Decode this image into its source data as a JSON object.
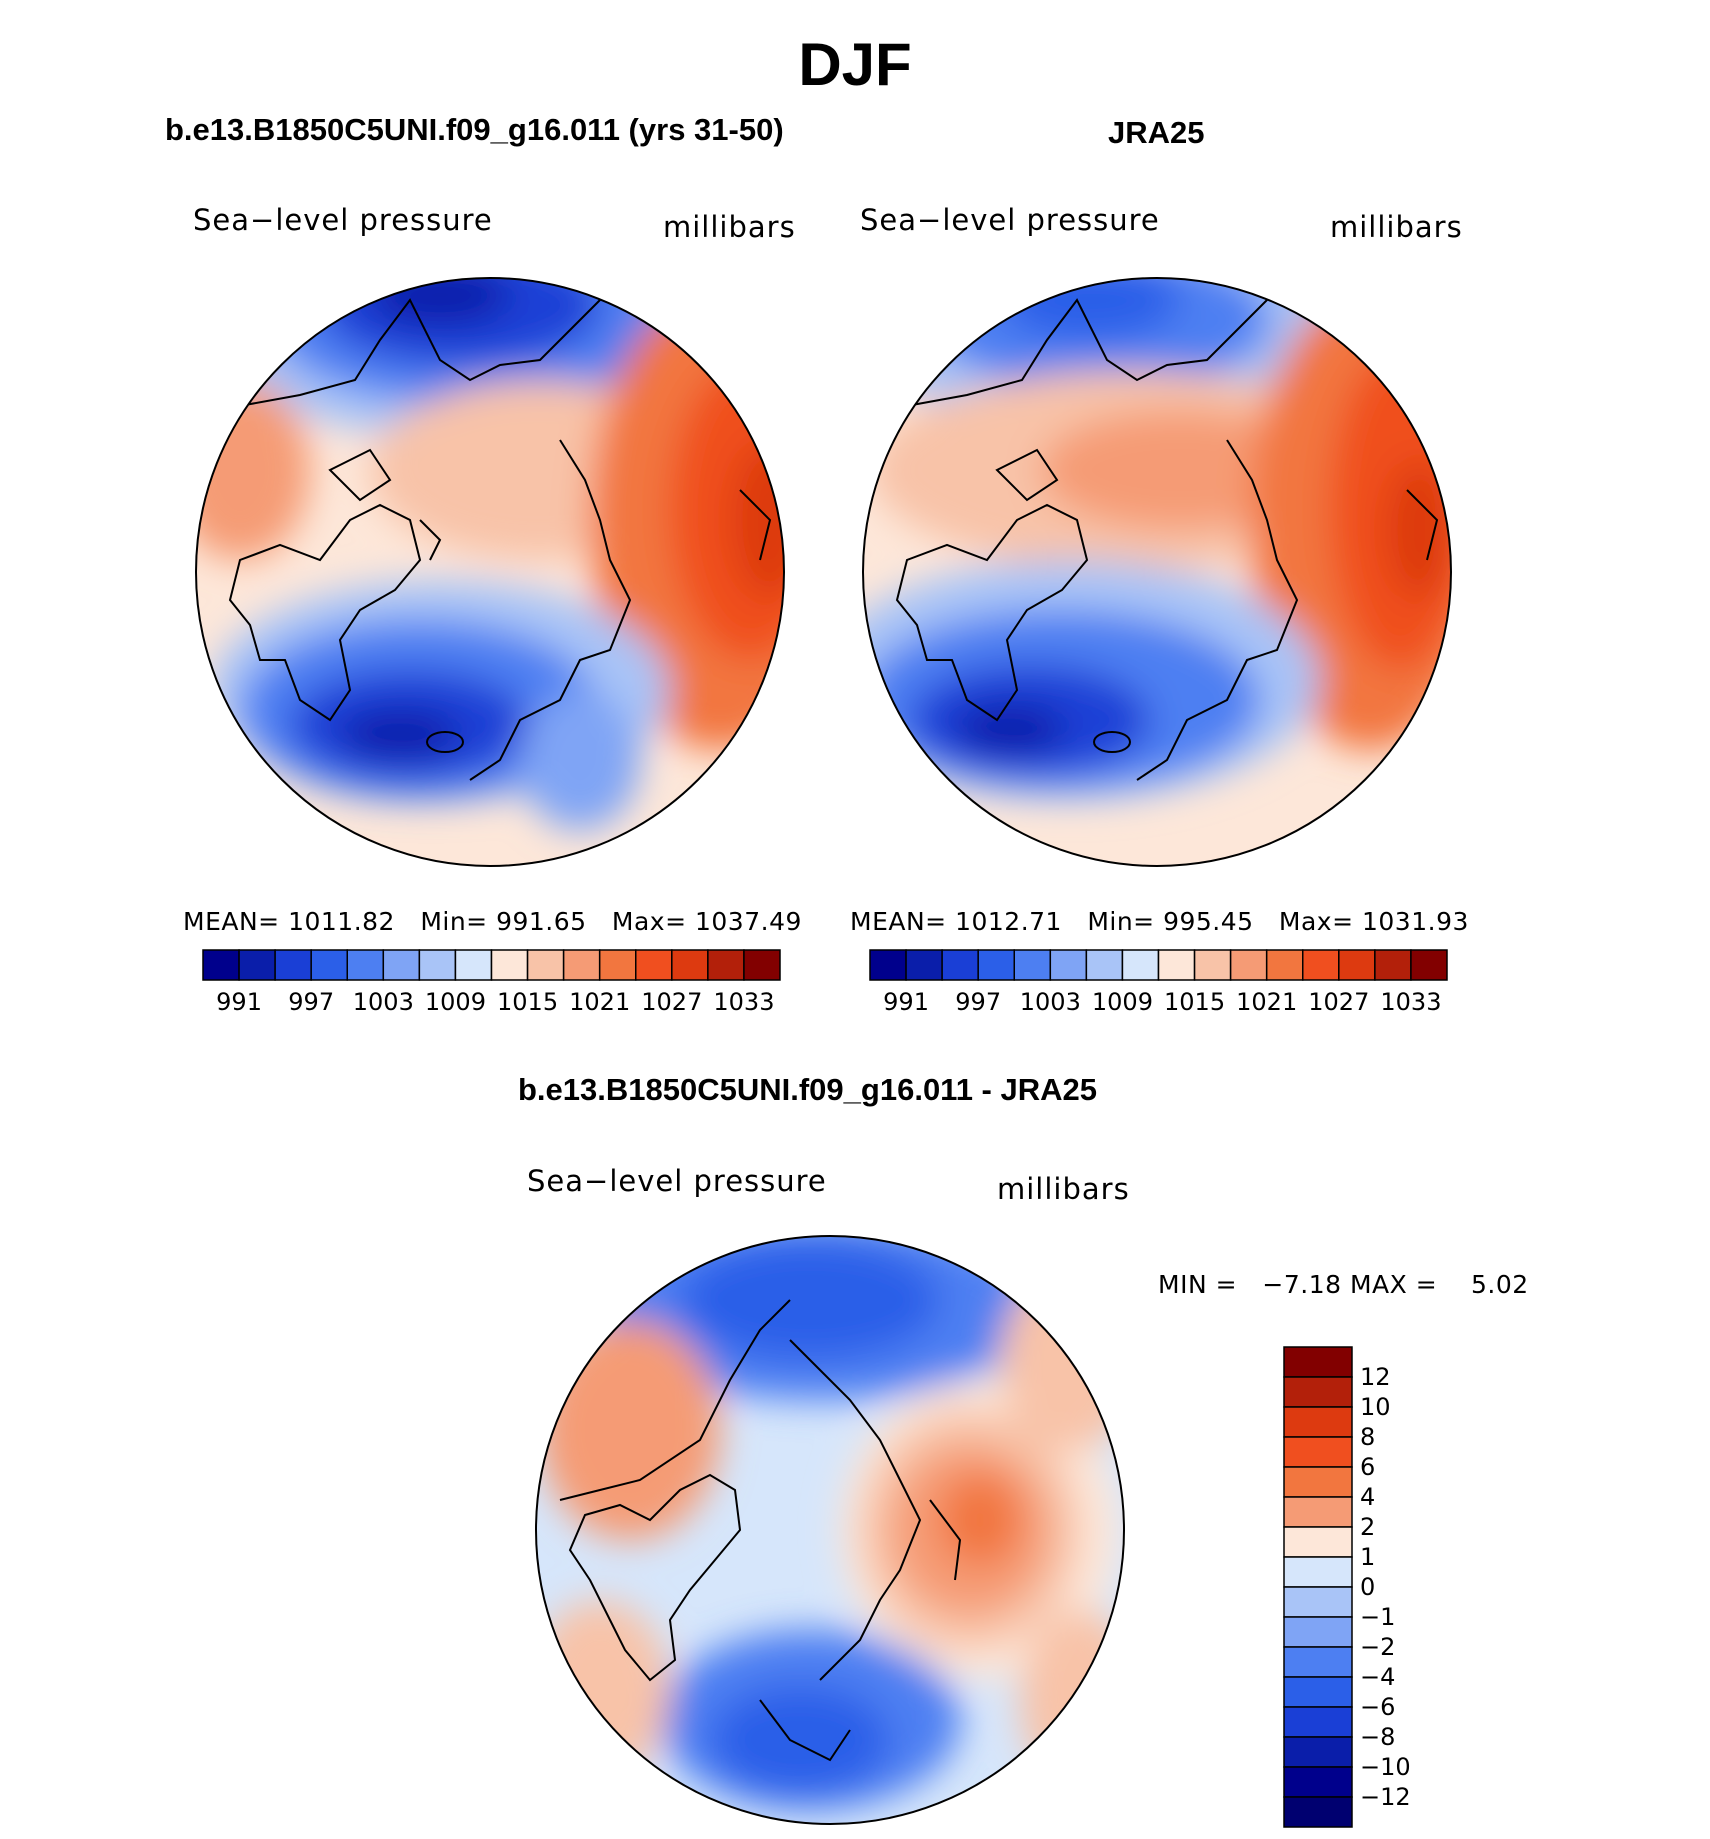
{
  "title": "DJF",
  "panels": {
    "model": {
      "heading": "b.e13.B1850C5UNI.f09_g16.011 (yrs 31-50)",
      "variable": "Sea−level pressure",
      "units": "millibars",
      "mean_label": "MEAN=",
      "mean": "1011.82",
      "min_label": "Min=",
      "min": "991.65",
      "max_label": "Max=",
      "max": "1037.49"
    },
    "obs": {
      "heading": "JRA25",
      "variable": "Sea−level pressure",
      "units": "millibars",
      "mean_label": "MEAN=",
      "mean": "1012.71",
      "min_label": "Min=",
      "min": "995.45",
      "max_label": "Max=",
      "max": "1031.93"
    },
    "diff": {
      "heading": "b.e13.B1850C5UNI.f09_g16.011 - JRA25",
      "variable": "Sea−level pressure",
      "units": "millibars",
      "min_label": "MIN =",
      "min": "−7.18",
      "max_label": "MAX =",
      "max": "5.02"
    }
  },
  "abs_colorbar": {
    "tick_labels": [
      "991",
      "997",
      "1003",
      "1009",
      "1015",
      "1021",
      "1027",
      "1033"
    ],
    "colors": [
      "#00008c",
      "#0a1eaa",
      "#1a3fd6",
      "#2b5fe8",
      "#4d7ff2",
      "#7fa4f5",
      "#a9c4f7",
      "#d6e6fb",
      "#fde7d9",
      "#f8c3a8",
      "#f59b75",
      "#f2763f",
      "#f04f1f",
      "#dd3a10",
      "#b3200a",
      "#820000"
    ]
  },
  "diff_colorbar": {
    "tick_labels": [
      "12",
      "10",
      "8",
      "6",
      "4",
      "2",
      "1",
      "0",
      "−1",
      "−2",
      "−4",
      "−6",
      "−8",
      "−10",
      "−12"
    ],
    "colors": [
      "#820000",
      "#b3200a",
      "#dd3a10",
      "#f04f1f",
      "#f2763f",
      "#f59b75",
      "#fde7d9",
      "#d6e6fb",
      "#a9c4f7",
      "#7fa4f5",
      "#4d7ff2",
      "#2b5fe8",
      "#1a3fd6",
      "#0a1eaa",
      "#00008c",
      "#000070"
    ]
  }
}
